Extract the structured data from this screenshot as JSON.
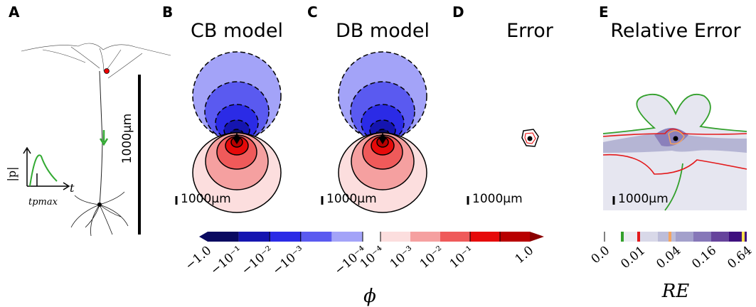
{
  "panel_a": {
    "letter": "A",
    "scale_label": "1000μm",
    "y_label": "|p|",
    "x_label": "t",
    "t_label": "tpmax"
  },
  "panel_b": {
    "letter": "B",
    "title": "CB model",
    "scale_label": "1000μm"
  },
  "panel_c": {
    "letter": "C",
    "title": "DB model",
    "scale_label": "1000μm"
  },
  "panel_d": {
    "letter": "D",
    "title": "Error",
    "scale_label": "1000μm"
  },
  "panel_e": {
    "letter": "E",
    "title": "Relative Error",
    "scale_label": "1000μm"
  },
  "colorbar_phi": {
    "label": "ϕ",
    "negative_colors": [
      "#0a0a60",
      "#1515b0",
      "#2b2be6",
      "#5a5af0",
      "#a3a3f8"
    ],
    "positive_colors": [
      "#fcdede",
      "#f5a0a0",
      "#ef5a5a",
      "#e60a0a",
      "#b80000"
    ],
    "ticks": [
      "−1.0",
      "−10⁻¹",
      "−10⁻²",
      "−10⁻³",
      "−10⁻⁴",
      "10⁻⁴",
      "10⁻³",
      "10⁻²",
      "10⁻¹",
      "1.0"
    ]
  },
  "colorbar_re": {
    "label": "RE",
    "colors": [
      "#ffffff",
      "#ebebf3",
      "#d8d8e8",
      "#bdbdd9",
      "#a3a0cb",
      "#8677b8",
      "#66449c",
      "#3e0f7e"
    ],
    "ticks": [
      "0.0",
      "0.01",
      "0.04",
      "0.16",
      "0.64"
    ]
  }
}
